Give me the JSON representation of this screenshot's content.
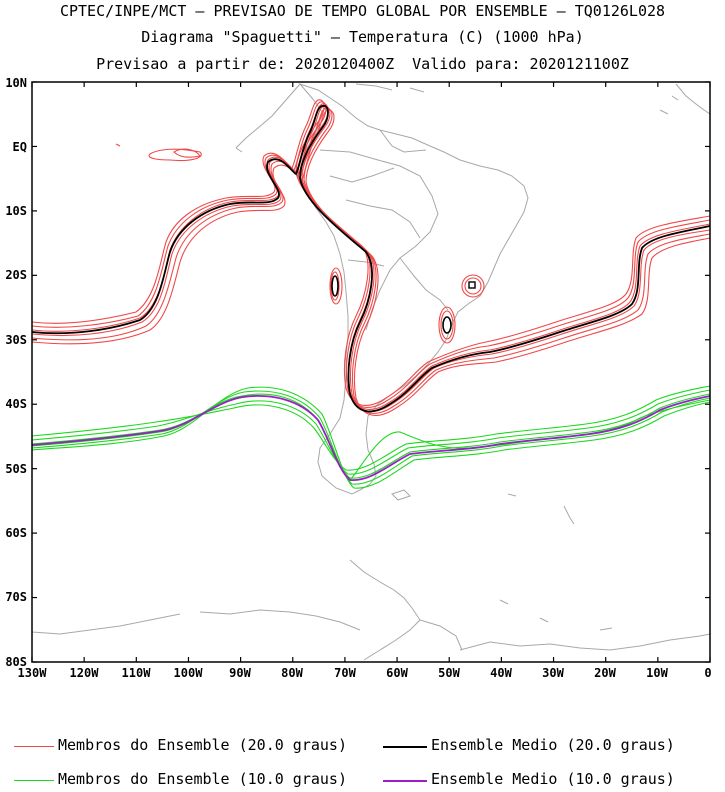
{
  "header": {
    "line1": "CPTEC/INPE/MCT – PREVISAO DE TEMPO GLOBAL POR ENSEMBLE – TQ0126L028",
    "line2": "Diagrama \"Spaguetti\" – Temperatura (C) (1000 hPa)",
    "line3": "Previsao a partir de: 2020120400Z  Valido para: 2020121100Z"
  },
  "axes": {
    "lat_labels": [
      "10N",
      "EQ",
      "10S",
      "20S",
      "30S",
      "40S",
      "50S",
      "60S",
      "70S",
      "80S"
    ],
    "lon_labels": [
      "130W",
      "120W",
      "110W",
      "100W",
      "90W",
      "80W",
      "70W",
      "60W",
      "50W",
      "40W",
      "30W",
      "20W",
      "10W",
      "0"
    ]
  },
  "colors": {
    "member20": "#f04848",
    "mean20": "#000000",
    "member10": "#1ed81e",
    "mean10": "#9b1fc8",
    "coast": "#a8a8a8"
  },
  "legend": {
    "member20": "Membros do Ensemble (20.0 graus)",
    "mean20": "Ensemble Medio (20.0 graus)",
    "member10": "Membros do Ensemble (10.0 graus)",
    "mean10": "Ensemble Medio (10.0 graus)"
  }
}
